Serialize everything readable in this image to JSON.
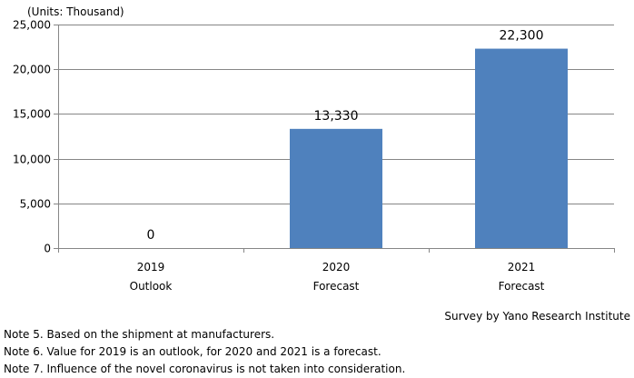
{
  "chart_data": {
    "type": "bar",
    "units_label": "(Units: Thousand)",
    "categories": [
      "2019",
      "2020",
      "2021"
    ],
    "category_sublabels": [
      "Outlook",
      "Forecast",
      "Forecast"
    ],
    "values": [
      0,
      13330,
      22300
    ],
    "data_labels": [
      "0",
      "13,330",
      "22,300"
    ],
    "y_ticks": [
      "0",
      "5,000",
      "10,000",
      "15,000",
      "20,000",
      "25,000"
    ],
    "ylim": [
      0,
      25000
    ],
    "grid": true,
    "bar_color": "#4f81bd",
    "grid_color": "#868686"
  },
  "source": "Survey by Yano Research Institute",
  "notes": [
    "Note 5.  Based on the shipment at manufacturers.",
    "Note 6.  Value for 2019 is an outlook, for 2020 and 2021 is a forecast.",
    "Note 7.  Influence of the novel coronavirus is not taken into consideration."
  ]
}
